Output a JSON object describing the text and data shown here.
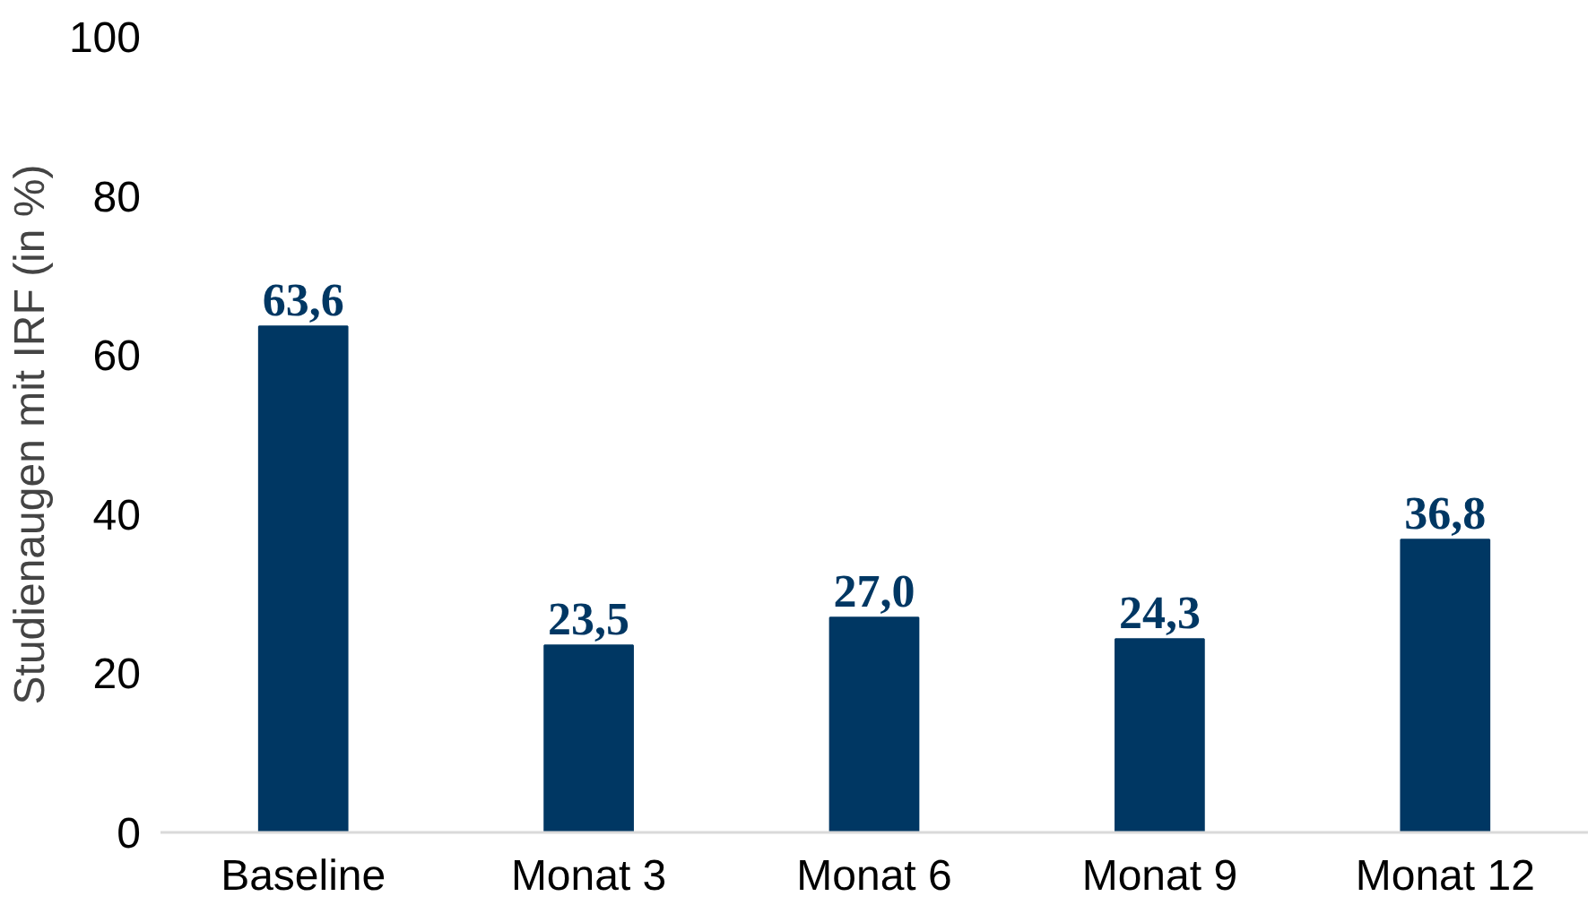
{
  "chart_data": {
    "type": "bar",
    "ylabel": "Studienaugen mit IRF (in %)",
    "categories": [
      "Baseline",
      "Monat 3",
      "Monat 6",
      "Monat 9",
      "Monat 12"
    ],
    "values": [
      63.6,
      23.5,
      27.0,
      24.3,
      36.8
    ],
    "value_labels": [
      "63,6",
      "23,5",
      "27,0",
      "24,3",
      "36,8"
    ],
    "color": "#003763",
    "ylim": [
      0,
      100
    ],
    "yticks": [
      0,
      20,
      40,
      60,
      80,
      100
    ],
    "grid": false
  }
}
